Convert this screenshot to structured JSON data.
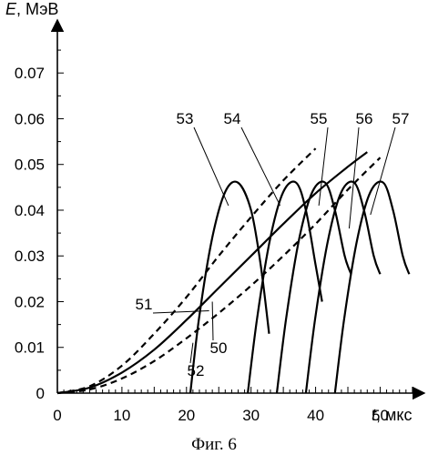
{
  "chart_data": {
    "type": "line",
    "ylabel_var": "E",
    "ylabel_unit": ", МэВ",
    "xlabel_var": "t",
    "xlabel_unit": ", мкс",
    "caption": "Фиг. 6",
    "xlim": [
      0,
      56
    ],
    "ylim": [
      0,
      0.078
    ],
    "x_ticks": [
      "0",
      "10",
      "20",
      "30",
      "40",
      "50"
    ],
    "x_tick_values": [
      0,
      10,
      20,
      30,
      40,
      50
    ],
    "y_ticks": [
      "0",
      "0.01",
      "0.02",
      "0.03",
      "0.04",
      "0.05",
      "0.06",
      "0.07"
    ],
    "y_tick_values": [
      0,
      0.01,
      0.02,
      0.03,
      0.04,
      0.05,
      0.06,
      0.07
    ],
    "grid": false,
    "series": [
      {
        "name": "50",
        "style": "solid",
        "x": [
          0,
          5,
          10,
          15,
          20,
          25,
          30,
          35,
          40,
          45,
          48
        ],
        "y": [
          0,
          0.0012,
          0.0045,
          0.0095,
          0.016,
          0.023,
          0.03,
          0.037,
          0.0437,
          0.0495,
          0.0527
        ]
      },
      {
        "name": "51",
        "style": "dashed",
        "x": [
          0,
          5,
          10,
          15,
          20,
          25,
          30,
          35,
          40
        ],
        "y": [
          0,
          0.0015,
          0.006,
          0.013,
          0.021,
          0.03,
          0.0385,
          0.0465,
          0.0535
        ]
      },
      {
        "name": "52",
        "style": "dashed",
        "x": [
          0,
          5,
          10,
          15,
          20,
          25,
          30,
          35,
          40,
          45,
          50
        ],
        "y": [
          0,
          0.0008,
          0.0032,
          0.007,
          0.012,
          0.0175,
          0.0235,
          0.03,
          0.037,
          0.0445,
          0.0515
        ]
      },
      {
        "name": "53",
        "style": "solid",
        "x": [
          20.6,
          22,
          24,
          26,
          28,
          30,
          31.5,
          32.8
        ],
        "y": [
          0,
          0.017,
          0.034,
          0.044,
          0.046,
          0.04,
          0.028,
          0.013
        ]
      },
      {
        "name": "54",
        "style": "solid",
        "x": [
          29.5,
          31,
          33,
          35,
          37,
          38.5,
          40,
          41
        ],
        "y": [
          0,
          0.017,
          0.034,
          0.044,
          0.046,
          0.04,
          0.028,
          0.02
        ]
      },
      {
        "name": "55",
        "style": "solid",
        "x": [
          34,
          35.5,
          37.5,
          39.5,
          41.5,
          43,
          44.5,
          45.5
        ],
        "y": [
          0,
          0.017,
          0.034,
          0.044,
          0.046,
          0.04,
          0.03,
          0.026
        ]
      },
      {
        "name": "56",
        "style": "solid",
        "x": [
          38.5,
          40,
          42,
          44,
          46,
          47.5,
          49,
          50
        ],
        "y": [
          0,
          0.017,
          0.034,
          0.044,
          0.046,
          0.04,
          0.03,
          0.026
        ]
      },
      {
        "name": "57",
        "style": "solid",
        "x": [
          43,
          44.5,
          46.5,
          48.5,
          50.5,
          52,
          53.5,
          54.5
        ],
        "y": [
          0,
          0.017,
          0.034,
          0.044,
          0.046,
          0.04,
          0.03,
          0.026
        ]
      }
    ]
  }
}
